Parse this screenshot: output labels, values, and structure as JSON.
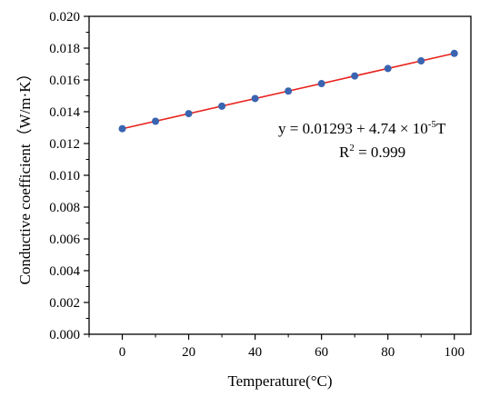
{
  "chart_data": {
    "type": "scatter",
    "xlabel": "Temperature(°C)",
    "ylabel": "Conductive coefficient（W/m·K）",
    "xlim": [
      -10,
      105
    ],
    "ylim": [
      0,
      0.02
    ],
    "xticks": [
      0,
      20,
      40,
      60,
      80,
      100
    ],
    "xtick_labels": [
      "0",
      "20",
      "40",
      "60",
      "80",
      "100"
    ],
    "yticks": [
      0,
      0.002,
      0.004,
      0.006,
      0.008,
      0.01,
      0.012,
      0.014,
      0.016,
      0.018,
      0.02
    ],
    "ytick_labels": [
      "0.000",
      "0.002",
      "0.004",
      "0.006",
      "0.008",
      "0.010",
      "0.012",
      "0.014",
      "0.016",
      "0.018",
      "0.020"
    ],
    "grid": false,
    "series": [
      {
        "x": [
          0,
          10,
          20,
          30,
          40,
          50,
          60,
          70,
          80,
          90,
          100
        ],
        "y": [
          0.01293,
          0.0134,
          0.01388,
          0.01435,
          0.01483,
          0.0153,
          0.01577,
          0.01625,
          0.01672,
          0.0172,
          0.01767
        ],
        "color": "#3a64b0"
      }
    ],
    "fit": {
      "intercept": 0.01293,
      "slope": 4.74e-05,
      "x_range": [
        0,
        100
      ],
      "color": "#e8231d"
    },
    "annotation": {
      "eq_prefix": "y = 0.01293 + 4.74 × 10",
      "eq_exp": "-5",
      "eq_suffix": "T",
      "r2_prefix": "R",
      "r2_exp": "2",
      "r2_suffix": " = 0.999"
    }
  }
}
